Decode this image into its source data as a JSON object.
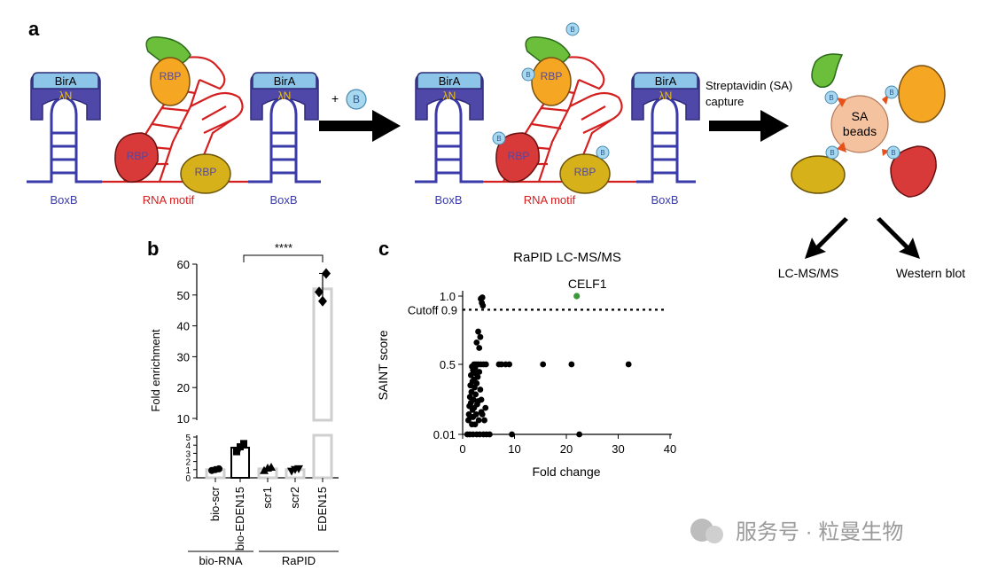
{
  "panel_a": {
    "label": "a",
    "left": {
      "birA": "BirA",
      "lambdaN": "λN",
      "boxb": "BoxB",
      "rna_motif": "RNA motif",
      "rbp": "RBP"
    },
    "middle": {
      "birA": "BirA",
      "lambdaN": "λN",
      "boxb": "BoxB",
      "rna_motif": "RNA motif",
      "rbp": "RBP"
    },
    "plus_b": "+",
    "biotin": "B",
    "sa_capture_line1": "Streptavidin (SA)",
    "sa_capture_line2": "capture",
    "sa_beads_line1": "SA",
    "sa_beads_line2": "beads",
    "output_left": "LC-MS/MS",
    "output_right": "Western blot"
  },
  "panel_b": {
    "label": "b",
    "significance": "****",
    "chart_data": {
      "type": "bar",
      "ylabel": "Fold enrichment",
      "categories": [
        "bio-scr",
        "bio-EDEN15",
        "scr1",
        "scr2",
        "EDEN15"
      ],
      "values": [
        1,
        3.7,
        1.1,
        1,
        52
      ],
      "points": [
        [
          0.9,
          1.0,
          1.1
        ],
        [
          3.2,
          3.8,
          4.2
        ],
        [
          0.9,
          1.2,
          1.3
        ],
        [
          0.8,
          1.0,
          1.1
        ],
        [
          48,
          51,
          57
        ]
      ],
      "yticks_upper": [
        "10",
        "20",
        "30",
        "40",
        "50",
        "60"
      ],
      "yticks_lower": [
        "0",
        "1",
        "2",
        "3",
        "4",
        "5"
      ],
      "ylim_upper": [
        10,
        60
      ],
      "ylim_lower": [
        0,
        5
      ],
      "groups": [
        {
          "name": "bio-RNA",
          "members": [
            "bio-scr",
            "bio-EDEN15"
          ]
        },
        {
          "name": "RaPID",
          "members": [
            "scr1",
            "scr2",
            "EDEN15"
          ]
        }
      ]
    }
  },
  "panel_c": {
    "label": "c",
    "chart_data": {
      "type": "scatter",
      "title": "RaPID LC-MS/MS",
      "xlabel": "Fold change",
      "ylabel": "SAINT score",
      "xticks": [
        "0",
        "10",
        "20",
        "30",
        "40"
      ],
      "yticks": [
        "0.01",
        "0.5",
        "1.0"
      ],
      "cutoff_label": "Cutoff 0.9",
      "highlight": {
        "label": "CELF1",
        "x": 22,
        "y": 1.0,
        "color": "#3a9a3a"
      },
      "points": [
        [
          3.5,
          0.98
        ],
        [
          3.7,
          0.95
        ],
        [
          3.9,
          0.93
        ],
        [
          3.8,
          0.99
        ],
        [
          3.0,
          0.74
        ],
        [
          3.4,
          0.7
        ],
        [
          2.7,
          0.66
        ],
        [
          3.2,
          0.62
        ],
        [
          2.2,
          0.5
        ],
        [
          2.6,
          0.5
        ],
        [
          3.0,
          0.5
        ],
        [
          3.5,
          0.5
        ],
        [
          4.0,
          0.5
        ],
        [
          4.5,
          0.5
        ],
        [
          7.0,
          0.5
        ],
        [
          7.5,
          0.5
        ],
        [
          8.3,
          0.5
        ],
        [
          9.0,
          0.5
        ],
        [
          15.5,
          0.5
        ],
        [
          21.0,
          0.5
        ],
        [
          32.0,
          0.5
        ],
        [
          1.8,
          0.47
        ],
        [
          2.4,
          0.45
        ],
        [
          2.0,
          0.42
        ],
        [
          3.2,
          0.4
        ],
        [
          2.6,
          0.38
        ],
        [
          1.6,
          0.36
        ],
        [
          2.9,
          0.34
        ],
        [
          2.2,
          0.31
        ],
        [
          1.9,
          0.29
        ],
        [
          2.7,
          0.27
        ],
        [
          1.5,
          0.25
        ],
        [
          2.3,
          0.23
        ],
        [
          3.4,
          0.21
        ],
        [
          1.7,
          0.19
        ],
        [
          2.5,
          0.17
        ],
        [
          1.4,
          0.15
        ],
        [
          2.1,
          0.13
        ],
        [
          3.0,
          0.12
        ],
        [
          1.6,
          0.11
        ],
        [
          2.8,
          0.1
        ],
        [
          1.3,
          0.09
        ],
        [
          2.2,
          0.08
        ],
        [
          1.9,
          0.07
        ],
        [
          3.6,
          0.06
        ],
        [
          1.2,
          0.05
        ],
        [
          2.6,
          0.05
        ],
        [
          1.5,
          0.04
        ],
        [
          2.0,
          0.04
        ],
        [
          3.1,
          0.03
        ],
        [
          1.1,
          0.03
        ],
        [
          2.4,
          0.02
        ],
        [
          1.8,
          0.02
        ],
        [
          0.9,
          0.01
        ],
        [
          1.4,
          0.01
        ],
        [
          2.0,
          0.01
        ],
        [
          2.7,
          0.01
        ],
        [
          3.3,
          0.01
        ],
        [
          4.0,
          0.01
        ],
        [
          4.6,
          0.01
        ],
        [
          5.2,
          0.01
        ],
        [
          9.5,
          0.01
        ],
        [
          22.5,
          0.01
        ],
        [
          4.2,
          0.03
        ],
        [
          3.8,
          0.05
        ],
        [
          4.4,
          0.08
        ],
        [
          3.6,
          0.13
        ]
      ]
    }
  },
  "watermark": "服务号 · 粒曼生物"
}
